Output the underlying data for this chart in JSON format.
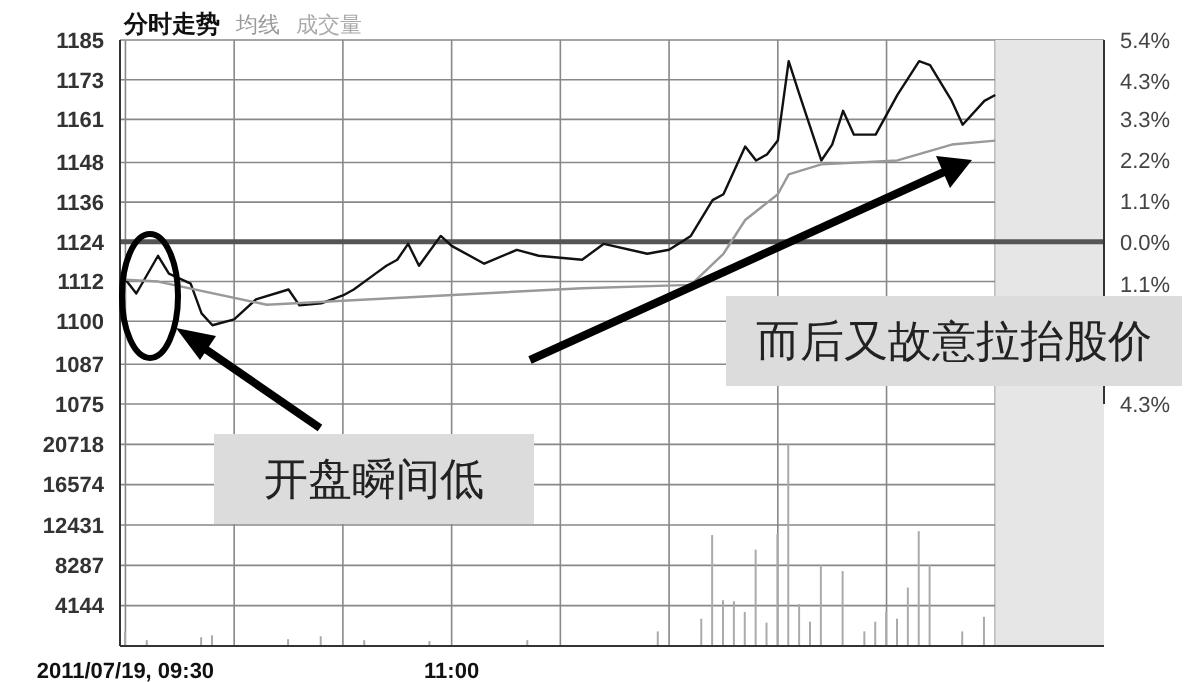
{
  "chart_data": [
    {
      "type": "line",
      "title": "分时走势",
      "legend": "top left",
      "grid": true,
      "tick_labels": "y",
      "categories": [
        null,
        null,
        null,
        null,
        null,
        null,
        null,
        null,
        null,
        null,
        null,
        null,
        null,
        null,
        null,
        null,
        null,
        null,
        null,
        null,
        null,
        null,
        null,
        null,
        null,
        null,
        null,
        null,
        null,
        null,
        null,
        null,
        null,
        null,
        null,
        null,
        null,
        null,
        null,
        null,
        null,
        null,
        null,
        null,
        null,
        null,
        null,
        null,
        null,
        null,
        null,
        null,
        null,
        null,
        null,
        null,
        null,
        null,
        null,
        null,
        null,
        null,
        null,
        null,
        null,
        null,
        null,
        null,
        null,
        null,
        null,
        null,
        null,
        null,
        null,
        null,
        null,
        null,
        null,
        null,
        null,
        null,
        null,
        null,
        null,
        null,
        null,
        null,
        null,
        null,
        null
      ],
      "ylim": [
        1075,
        1185
      ],
      "yticks": [
        1075,
        1087,
        1100,
        1112,
        1124,
        1136,
        1148,
        1161,
        1173,
        1185
      ],
      "y2lim": [
        -4.3,
        5.4
      ],
      "y2ticks": [
        {
          "value": -4.3,
          "label": "4.3%"
        },
        {
          "value": -1.1,
          "label": "1.1%"
        },
        {
          "value": 0,
          "label": "0.0%"
        },
        {
          "value": 1.1,
          "label": "1.1%"
        },
        {
          "value": 2.2,
          "label": "2.2%"
        },
        {
          "value": 3.3,
          "label": "3.3%"
        },
        {
          "value": 4.3,
          "label": "4.3%"
        },
        {
          "value": 5.4,
          "label": "5.4%"
        }
      ],
      "ref_lines": [
        {
          "axis": "y",
          "value": 1124,
          "color": "#555555"
        }
      ],
      "annotations": [
        "开盘瞬间低",
        "而后又故意拉抬股价"
      ],
      "series": [
        {
          "color": "#111111",
          "values": [
            1112.6,
            1108.4,
            null,
            1119.8,
            1114.4,
            null,
            1111.4,
            1102.4,
            1098.8,
            null,
            1100.6,
            null,
            1106.6,
            null,
            null,
            1109.6,
            1104.8,
            null,
            1105.4,
            null,
            1107.8,
            1109.6,
            null,
            1114.4,
            1116.8,
            1118.6,
            1123.4,
            1116.8,
            null,
            1125.8,
            1122.8,
            null,
            null,
            1117.4,
            null,
            null,
            1121.6,
            null,
            1119.8,
            null,
            null,
            null,
            1118.6,
            null,
            1123.4,
            null,
            null,
            null,
            1120.4,
            null,
            1121.6,
            null,
            1125.8,
            null,
            1136.6,
            1138.4,
            null,
            1152.8,
            1148.6,
            1150.4,
            1154.6,
            1178.6,
            1168.4,
            null,
            1148.6,
            1153.4,
            1163.6,
            1156.4,
            null,
            1156.4,
            null,
            1168.4,
            null,
            1178.6,
            1177.4,
            null,
            1166.6,
            1159.4,
            null,
            1166.6,
            1168.4,
            null,
            null,
            null,
            null,
            null,
            null,
            null,
            null,
            null,
            null
          ]
        },
        {
          "name": "均线",
          "color": "#999999",
          "values": [
            1112.6,
            null,
            null,
            1112,
            null,
            null,
            null,
            null,
            null,
            null,
            null,
            null,
            null,
            1105,
            null,
            null,
            null,
            null,
            null,
            null,
            null,
            null,
            null,
            null,
            null,
            null,
            null,
            null,
            null,
            null,
            null,
            null,
            null,
            null,
            null,
            null,
            null,
            null,
            null,
            null,
            null,
            null,
            1110,
            null,
            null,
            null,
            null,
            null,
            null,
            null,
            null,
            null,
            1111,
            null,
            null,
            1120.4,
            null,
            1130.6,
            null,
            null,
            1138.4,
            1144.4,
            null,
            null,
            1147.4,
            null,
            null,
            null,
            null,
            null,
            null,
            1148.6,
            null,
            null,
            null,
            null,
            1153.4,
            null,
            null,
            null,
            1154.6,
            null,
            null,
            null,
            null,
            null,
            null,
            null,
            null,
            null,
            null
          ]
        }
      ]
    },
    {
      "type": "bar",
      "grid": true,
      "categories": [
        "2011/07/19, 09:30",
        null,
        null,
        null,
        null,
        null,
        null,
        null,
        null,
        null,
        null,
        null,
        null,
        null,
        null,
        null,
        null,
        null,
        null,
        null,
        null,
        null,
        null,
        null,
        null,
        null,
        null,
        null,
        null,
        null,
        "11:00",
        null,
        null,
        null,
        null,
        null,
        null,
        null,
        null,
        null,
        null,
        null,
        null,
        null,
        null,
        null,
        null,
        null,
        null,
        null,
        null,
        null,
        null,
        null,
        null,
        null,
        null,
        null,
        null,
        null,
        null,
        null,
        null,
        null,
        null,
        null,
        null,
        null,
        null,
        null,
        null,
        null,
        null,
        null,
        null,
        null,
        null,
        null,
        null,
        null,
        null,
        null,
        null,
        null,
        null,
        null,
        null,
        null,
        null,
        null,
        null
      ],
      "ylim": [
        0,
        24861
      ],
      "yticks": [
        4144,
        8287,
        12431,
        16574,
        20718
      ],
      "series": [
        {
          "name": "成交量",
          "color": "#aaaaaa",
          "values": [
            1500,
            null,
            600,
            null,
            null,
            null,
            null,
            900,
            1100,
            null,
            null,
            null,
            null,
            null,
            null,
            700,
            null,
            null,
            1000,
            null,
            null,
            null,
            600,
            null,
            null,
            null,
            null,
            null,
            500,
            null,
            null,
            null,
            null,
            null,
            null,
            null,
            null,
            600,
            null,
            null,
            null,
            null,
            null,
            null,
            null,
            null,
            null,
            null,
            null,
            1500,
            null,
            null,
            null,
            2800,
            11400,
            4700,
            4600,
            3500,
            9900,
            2400,
            11500,
            20700,
            4300,
            2500,
            8300,
            null,
            7700,
            null,
            1500,
            2500,
            3500,
            2800,
            6000,
            11800,
            8300,
            null,
            null,
            1500,
            null,
            3000,
            null,
            null,
            null,
            null,
            null,
            null,
            null,
            null,
            null,
            null,
            null
          ]
        }
      ]
    }
  ]
}
